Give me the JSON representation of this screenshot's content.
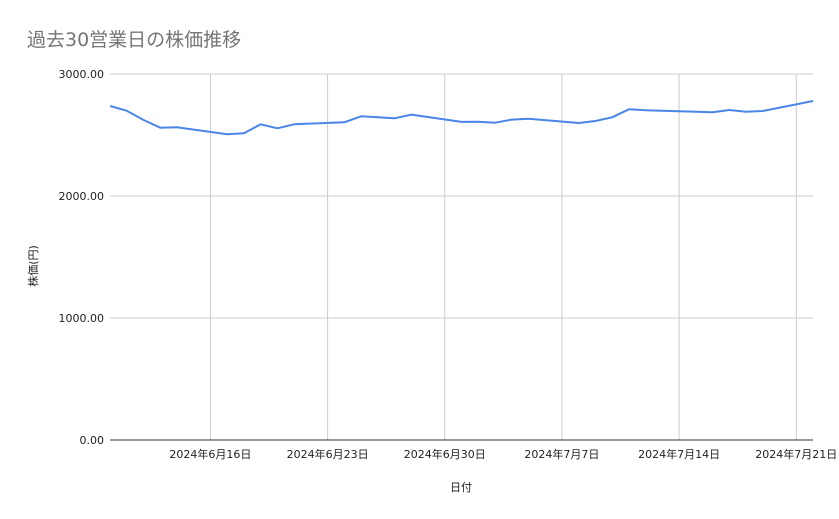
{
  "chart_data": {
    "type": "line",
    "title": "過去30営業日の株価推移",
    "xlabel": "日付",
    "ylabel": "株価(円)",
    "ylim": [
      0,
      3000
    ],
    "xlim": [
      "2024-06-10",
      "2024-07-22"
    ],
    "grid": true,
    "legend": "none",
    "y_ticks": [
      {
        "value": 0,
        "label": "0.00"
      },
      {
        "value": 1000,
        "label": "1000.00"
      },
      {
        "value": 2000,
        "label": "2000.00"
      },
      {
        "value": 3000,
        "label": "3000.00"
      }
    ],
    "x_ticks": [
      {
        "date": "2024-06-16",
        "label": "2024年6月16日"
      },
      {
        "date": "2024-06-23",
        "label": "2024年6月23日"
      },
      {
        "date": "2024-06-30",
        "label": "2024年6月30日"
      },
      {
        "date": "2024-07-07",
        "label": "2024年7月7日"
      },
      {
        "date": "2024-07-14",
        "label": "2024年7月14日"
      },
      {
        "date": "2024-07-21",
        "label": "2024年7月21日"
      }
    ],
    "series": [
      {
        "color": "#4a86e8",
        "x": [
          "2024-06-10",
          "2024-06-11",
          "2024-06-12",
          "2024-06-13",
          "2024-06-14",
          "2024-06-17",
          "2024-06-18",
          "2024-06-19",
          "2024-06-20",
          "2024-06-21",
          "2024-06-24",
          "2024-06-25",
          "2024-06-26",
          "2024-06-27",
          "2024-06-28",
          "2024-07-01",
          "2024-07-02",
          "2024-07-03",
          "2024-07-04",
          "2024-07-05",
          "2024-07-08",
          "2024-07-09",
          "2024-07-10",
          "2024-07-11",
          "2024-07-12",
          "2024-07-15",
          "2024-07-16",
          "2024-07-17",
          "2024-07-18",
          "2024-07-19",
          "2024-07-22"
        ],
        "values": [
          2738,
          2699,
          2623,
          2560,
          2563,
          2506,
          2514,
          2588,
          2555,
          2588,
          2604,
          2653,
          2645,
          2637,
          2667,
          2607,
          2609,
          2601,
          2626,
          2634,
          2598,
          2615,
          2645,
          2711,
          2703,
          2691,
          2686,
          2705,
          2691,
          2697,
          2779
        ]
      }
    ]
  }
}
